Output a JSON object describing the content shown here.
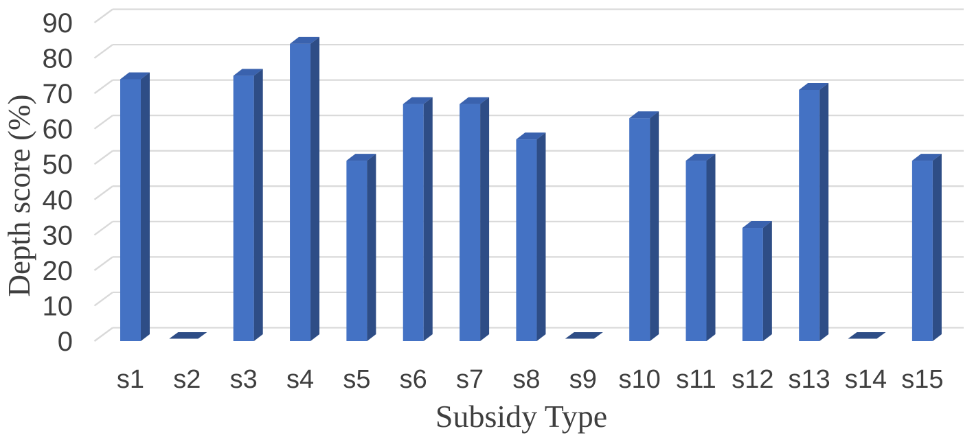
{
  "figure": {
    "y_axis_title": "Depth score (%)",
    "x_axis_title": "Subsidy Type"
  },
  "chart_data": {
    "type": "bar",
    "title": "",
    "xlabel": "Subsidy Type",
    "ylabel": "Depth score (%)",
    "categories": [
      "s1",
      "s2",
      "s3",
      "s4",
      "s5",
      "s6",
      "s7",
      "s8",
      "s9",
      "s10",
      "s11",
      "s12",
      "s13",
      "s14",
      "s15"
    ],
    "values": [
      74,
      0,
      75,
      84,
      51,
      67,
      67,
      57,
      0,
      63,
      51,
      32,
      71,
      0,
      51
    ],
    "ylim": [
      0,
      90
    ],
    "ytick_step": 10,
    "yticks": [
      0,
      10,
      20,
      30,
      40,
      50,
      60,
      70,
      80,
      90
    ],
    "grid": true,
    "legend": false,
    "style": "excel-3d-bevel",
    "colors": {
      "bar_front": "#4472C4",
      "bar_top": "#3A62AE",
      "bar_side": "#2E4D86",
      "gridline": "#D9D9D9",
      "text": "#3F3F3F",
      "background": "#FFFFFF"
    }
  }
}
